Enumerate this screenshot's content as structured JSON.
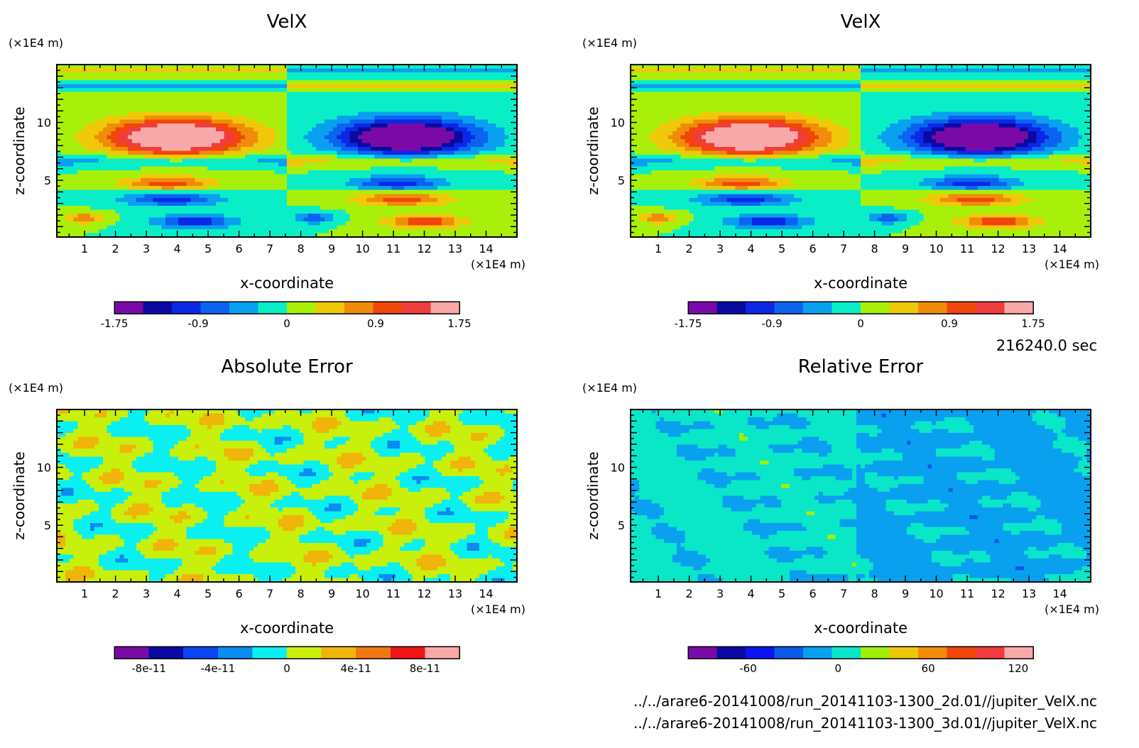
{
  "timestamp": "216240.0 sec",
  "file_paths": [
    "../../arare6-20141008/run_20141103-1300_2d.01//jupiter_VelX.nc",
    "../../arare6-20141008/run_20141103-1300_3d.01//jupiter_VelX.nc"
  ],
  "axis_unit": "(×1E4 m)",
  "chart_data": [
    {
      "type": "heatmap",
      "title": "VelX",
      "xlabel": "x-coordinate",
      "ylabel": "z-coordinate",
      "x_ticks": [
        "1",
        "2",
        "3",
        "4",
        "5",
        "6",
        "7",
        "8",
        "9",
        "10",
        "11",
        "12",
        "13",
        "14"
      ],
      "y_ticks": [
        "5",
        "10"
      ],
      "xlim": [
        0.1,
        15.0
      ],
      "ylim": [
        0.1,
        15.0
      ],
      "colorbar": {
        "colors": [
          "#7a0aa8",
          "#0a0aa0",
          "#0a28e6",
          "#0a64f0",
          "#0aa0f0",
          "#0aeec8",
          "#a8f00a",
          "#f0c80a",
          "#f08c0a",
          "#f0460a",
          "#f03c3c",
          "#f8a8a8"
        ],
        "tick_labels": [
          "-1.75",
          "-0.9",
          "0",
          "0.9",
          "1.75"
        ],
        "range": [
          -1.75,
          1.75
        ]
      }
    },
    {
      "type": "heatmap",
      "title": "VelX",
      "xlabel": "x-coordinate",
      "ylabel": "z-coordinate",
      "x_ticks": [
        "1",
        "2",
        "3",
        "4",
        "5",
        "6",
        "7",
        "8",
        "9",
        "10",
        "11",
        "12",
        "13",
        "14"
      ],
      "y_ticks": [
        "5",
        "10"
      ],
      "xlim": [
        0.1,
        15.0
      ],
      "ylim": [
        0.1,
        15.0
      ],
      "colorbar": {
        "colors": [
          "#7a0aa8",
          "#0a0aa0",
          "#0a28e6",
          "#0a64f0",
          "#0aa0f0",
          "#0aeec8",
          "#a8f00a",
          "#f0c80a",
          "#f08c0a",
          "#f0460a",
          "#f03c3c",
          "#f8a8a8"
        ],
        "tick_labels": [
          "-1.75",
          "-0.9",
          "0",
          "0.9",
          "1.75"
        ],
        "range": [
          -1.75,
          1.75
        ]
      }
    },
    {
      "type": "heatmap",
      "title": "Absolute Error",
      "xlabel": "x-coordinate",
      "ylabel": "z-coordinate",
      "x_ticks": [
        "1",
        "2",
        "3",
        "4",
        "5",
        "6",
        "7",
        "8",
        "9",
        "10",
        "11",
        "12",
        "13",
        "14"
      ],
      "y_ticks": [
        "5",
        "10"
      ],
      "xlim": [
        0.1,
        15.0
      ],
      "ylim": [
        0.1,
        15.0
      ],
      "colorbar": {
        "colors": [
          "#7a0aa8",
          "#0a0aa0",
          "#0a46f0",
          "#0a8cf0",
          "#0af0f0",
          "#c8f00a",
          "#f0b40a",
          "#f07814",
          "#f01414",
          "#f8a8a8"
        ],
        "tick_labels": [
          "-8e-11",
          "-4e-11",
          "0",
          "4e-11",
          "8e-11"
        ],
        "range": [
          -1e-10,
          1e-10
        ]
      }
    },
    {
      "type": "heatmap",
      "title": "Relative Error",
      "xlabel": "x-coordinate",
      "ylabel": "z-coordinate",
      "x_ticks": [
        "1",
        "2",
        "3",
        "4",
        "5",
        "6",
        "7",
        "8",
        "9",
        "10",
        "11",
        "12",
        "13",
        "14"
      ],
      "y_ticks": [
        "5",
        "10"
      ],
      "xlim": [
        0.1,
        15.0
      ],
      "ylim": [
        0.1,
        15.0
      ],
      "colorbar": {
        "colors": [
          "#7a0aa8",
          "#0a0aa0",
          "#0a14f0",
          "#0a5ae6",
          "#0aa0f0",
          "#0ae6c8",
          "#a0f00a",
          "#f0c80a",
          "#f08c0a",
          "#f0460a",
          "#f03c3c",
          "#f8a8a8"
        ],
        "tick_labels": [
          "-60",
          "0",
          "60",
          "120"
        ],
        "range": [
          -100,
          130
        ]
      }
    }
  ]
}
